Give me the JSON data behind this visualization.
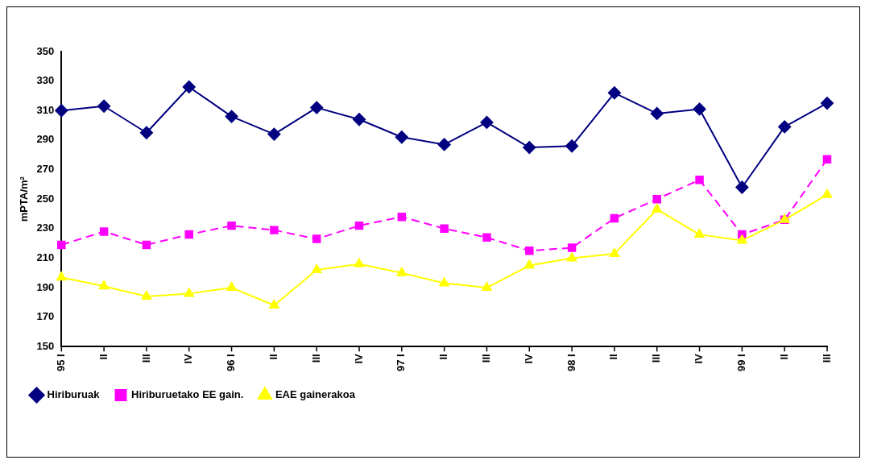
{
  "chart_data": {
    "type": "line",
    "ylabel": "mPTA/m²",
    "categories": [
      "95 I",
      "II",
      "III",
      "IV",
      "96 I",
      "II",
      "III",
      "IV",
      "97 I",
      "II",
      "III",
      "IV",
      "98 I",
      "II",
      "III",
      "IV",
      "99 I",
      "II",
      "III"
    ],
    "ylim": [
      150,
      350
    ],
    "yticks": [
      150,
      170,
      190,
      210,
      230,
      250,
      270,
      290,
      310,
      330,
      350
    ],
    "grid": false,
    "legend": "bottom",
    "series": [
      {
        "name": "Hiriburuak",
        "color": "#000080",
        "marker": "diamond",
        "line_style": "solid",
        "values": [
          310,
          313,
          295,
          326,
          306,
          294,
          312,
          304,
          292,
          287,
          302,
          285,
          286,
          322,
          308,
          311,
          258,
          299,
          315
        ]
      },
      {
        "name": "Hiriburuetako EE gain.",
        "color": "#ff00ff",
        "marker": "square",
        "line_style": "dashed",
        "values": [
          219,
          228,
          219,
          226,
          232,
          229,
          223,
          232,
          238,
          230,
          224,
          215,
          217,
          237,
          250,
          263,
          226,
          236,
          277
        ]
      },
      {
        "name": "EAE gainerakoa",
        "color": "#ffff00",
        "marker": "triangle",
        "line_style": "solid",
        "values": [
          197,
          191,
          184,
          186,
          190,
          178,
          202,
          206,
          200,
          193,
          190,
          205,
          210,
          213,
          243,
          226,
          222,
          236,
          253
        ]
      }
    ]
  }
}
